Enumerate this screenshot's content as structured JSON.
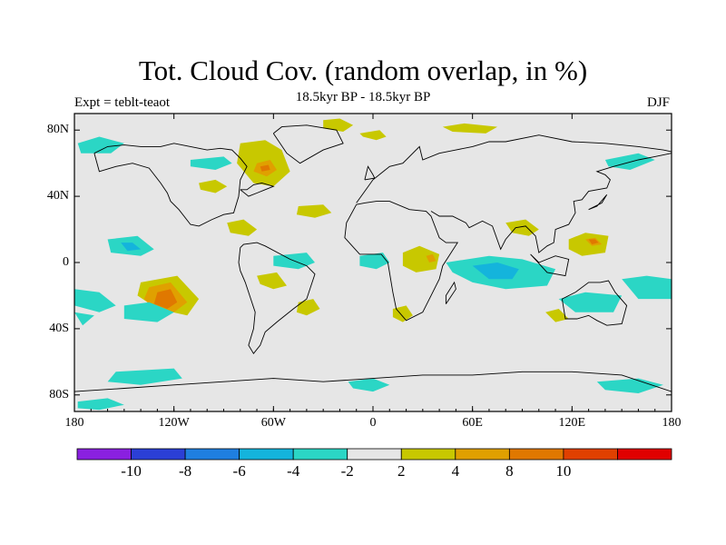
{
  "title": "Tot. Cloud Cov. (random overlap, in %)",
  "subtitle": "18.5kyr BP - 18.5kyr BP",
  "left_label": "Expt = teblt-teaot",
  "right_label": "DJF",
  "map": {
    "lon_range": [
      -180,
      180
    ],
    "lat_range": [
      -90,
      90
    ],
    "x_ticks": [
      {
        "value": -180,
        "label": "180"
      },
      {
        "value": -120,
        "label": "120W"
      },
      {
        "value": -60,
        "label": "60W"
      },
      {
        "value": 0,
        "label": "0"
      },
      {
        "value": 60,
        "label": "60E"
      },
      {
        "value": 120,
        "label": "120E"
      },
      {
        "value": 180,
        "label": "180"
      }
    ],
    "y_ticks": [
      {
        "value": 80,
        "label": "80N"
      },
      {
        "value": 40,
        "label": "40N"
      },
      {
        "value": 0,
        "label": "0"
      },
      {
        "value": -40,
        "label": "40S"
      },
      {
        "value": -80,
        "label": "80S"
      }
    ],
    "background_color": "#e6e6e6"
  },
  "colorbar": {
    "colors": [
      "#8a20e0",
      "#2b3fd6",
      "#1f7fe0",
      "#14b4dc",
      "#2bd6c5",
      "#e6e6e6",
      "#c8c800",
      "#e0a000",
      "#e07800",
      "#e04000",
      "#e00000"
    ],
    "labels": [
      "-10",
      "-8",
      "-6",
      "-4",
      "-2",
      "2",
      "4",
      "8",
      "10"
    ]
  },
  "anomalies": [
    {
      "kind": "pos",
      "level": 1,
      "lon": [
        -8,
        4,
        8,
        2,
        -6
      ],
      "lat": [
        78,
        80,
        76,
        74,
        76
      ]
    },
    {
      "kind": "pos",
      "level": 1,
      "lon": [
        42,
        55,
        75,
        68,
        48
      ],
      "lat": [
        82,
        84,
        82,
        78,
        79
      ]
    },
    {
      "kind": "pos",
      "level": 1,
      "lon": [
        -80,
        -65,
        -55,
        -50,
        -60,
        -72,
        -82
      ],
      "lat": [
        72,
        74,
        68,
        55,
        46,
        48,
        60
      ]
    },
    {
      "kind": "pos",
      "level": 2,
      "lon": [
        -70,
        -62,
        -58,
        -64,
        -72
      ],
      "lat": [
        60,
        62,
        56,
        52,
        55
      ]
    },
    {
      "kind": "pos",
      "level": 3,
      "lon": [
        -68,
        -63,
        -62,
        -67
      ],
      "lat": [
        58,
        59,
        56,
        55
      ]
    },
    {
      "kind": "pos",
      "level": 1,
      "lon": [
        -30,
        -20,
        -12,
        -18,
        -30
      ],
      "lat": [
        86,
        87,
        83,
        79,
        81
      ]
    },
    {
      "kind": "pos",
      "level": 1,
      "lon": [
        -88,
        -78,
        -70,
        -75,
        -86
      ],
      "lat": [
        24,
        26,
        20,
        16,
        18
      ]
    },
    {
      "kind": "pos",
      "level": 1,
      "lon": [
        -45,
        -30,
        -25,
        -35,
        -46
      ],
      "lat": [
        34,
        35,
        30,
        27,
        29
      ]
    },
    {
      "kind": "pos",
      "level": 1,
      "lon": [
        -140,
        -118,
        -105,
        -112,
        -130,
        -142
      ],
      "lat": [
        -12,
        -8,
        -22,
        -32,
        -28,
        -20
      ]
    },
    {
      "kind": "pos",
      "level": 2,
      "lon": [
        -135,
        -122,
        -112,
        -120,
        -132,
        -138
      ],
      "lat": [
        -15,
        -12,
        -24,
        -30,
        -28,
        -22
      ]
    },
    {
      "kind": "pos",
      "level": 3,
      "lon": [
        -130,
        -122,
        -118,
        -124,
        -132
      ],
      "lat": [
        -18,
        -16,
        -24,
        -28,
        -25
      ]
    },
    {
      "kind": "pos",
      "level": 1,
      "lon": [
        -70,
        -58,
        -52,
        -60,
        -68
      ],
      "lat": [
        -8,
        -6,
        -14,
        -16,
        -13
      ]
    },
    {
      "kind": "pos",
      "level": 1,
      "lon": [
        -45,
        -36,
        -32,
        -40,
        -46
      ],
      "lat": [
        -24,
        -22,
        -28,
        -32,
        -30
      ]
    },
    {
      "kind": "pos",
      "level": 1,
      "lon": [
        18,
        28,
        40,
        38,
        26,
        18
      ],
      "lat": [
        6,
        10,
        5,
        -4,
        -6,
        -2
      ]
    },
    {
      "kind": "pos",
      "level": 2,
      "lon": [
        32,
        36,
        38,
        34
      ],
      "lat": [
        4,
        5,
        1,
        0
      ]
    },
    {
      "kind": "pos",
      "level": 1,
      "lon": [
        12,
        20,
        24,
        18,
        12
      ],
      "lat": [
        -28,
        -26,
        -32,
        -36,
        -33
      ]
    },
    {
      "kind": "pos",
      "level": 1,
      "lon": [
        80,
        92,
        100,
        94,
        84
      ],
      "lat": [
        24,
        26,
        20,
        16,
        18
      ]
    },
    {
      "kind": "pos",
      "level": 1,
      "lon": [
        118,
        128,
        142,
        140,
        126,
        118
      ],
      "lat": [
        14,
        18,
        16,
        6,
        4,
        8
      ]
    },
    {
      "kind": "pos",
      "level": 2,
      "lon": [
        128,
        134,
        138,
        132
      ],
      "lat": [
        14,
        15,
        11,
        10
      ]
    },
    {
      "kind": "pos",
      "level": 3,
      "lon": [
        130,
        134,
        136,
        132
      ],
      "lat": [
        14,
        14,
        12,
        11
      ]
    },
    {
      "kind": "pos",
      "level": 1,
      "lon": [
        104,
        112,
        118,
        110
      ],
      "lat": [
        -30,
        -28,
        -34,
        -36
      ]
    },
    {
      "kind": "pos",
      "level": 1,
      "lon": [
        -105,
        -95,
        -88,
        -95,
        -104
      ],
      "lat": [
        48,
        50,
        46,
        42,
        44
      ]
    },
    {
      "kind": "neg",
      "level": 1,
      "lon": [
        -160,
        -142,
        -132,
        -140,
        -158
      ],
      "lat": [
        14,
        16,
        8,
        4,
        6
      ]
    },
    {
      "kind": "neg",
      "level": 2,
      "lon": [
        -152,
        -145,
        -140,
        -148
      ],
      "lat": [
        12,
        12,
        8,
        7
      ]
    },
    {
      "kind": "neg",
      "level": 1,
      "lon": [
        -180,
        -165,
        -155,
        -165,
        -180
      ],
      "lat": [
        -16,
        -18,
        -26,
        -30,
        -26
      ]
    },
    {
      "kind": "neg",
      "level": 1,
      "lon": [
        -150,
        -135,
        -120,
        -130,
        -150
      ],
      "lat": [
        -26,
        -24,
        -30,
        -36,
        -34
      ]
    },
    {
      "kind": "neg",
      "level": 1,
      "lon": [
        -178,
        -165,
        -150,
        -158,
        -176
      ],
      "lat": [
        72,
        76,
        72,
        66,
        66
      ]
    },
    {
      "kind": "neg",
      "level": 1,
      "lon": [
        -155,
        -120,
        -115,
        -140,
        -160
      ],
      "lat": [
        -66,
        -64,
        -70,
        -74,
        -72
      ]
    },
    {
      "kind": "neg",
      "level": 1,
      "lon": [
        -60,
        -40,
        -35,
        -45,
        -60
      ],
      "lat": [
        4,
        6,
        0,
        -4,
        -2
      ]
    },
    {
      "kind": "neg",
      "level": 1,
      "lon": [
        -8,
        6,
        10,
        2,
        -8
      ],
      "lat": [
        4,
        6,
        0,
        -4,
        -2
      ]
    },
    {
      "kind": "neg",
      "level": 1,
      "lon": [
        44,
        70,
        90,
        110,
        105,
        80,
        60,
        48
      ],
      "lat": [
        0,
        4,
        2,
        -4,
        -14,
        -16,
        -12,
        -6
      ]
    },
    {
      "kind": "neg",
      "level": 2,
      "lon": [
        60,
        75,
        88,
        84,
        70
      ],
      "lat": [
        -2,
        0,
        -4,
        -10,
        -10
      ]
    },
    {
      "kind": "neg",
      "level": 1,
      "lon": [
        112,
        128,
        150,
        145,
        122
      ],
      "lat": [
        -22,
        -18,
        -20,
        -30,
        -30
      ]
    },
    {
      "kind": "neg",
      "level": 1,
      "lon": [
        150,
        165,
        180,
        180,
        160
      ],
      "lat": [
        -10,
        -8,
        -10,
        -22,
        -22
      ]
    },
    {
      "kind": "neg",
      "level": 1,
      "lon": [
        -180,
        -168,
        -175
      ],
      "lat": [
        -30,
        -32,
        -38
      ]
    },
    {
      "kind": "neg",
      "level": 1,
      "lon": [
        -15,
        0,
        10,
        0,
        -12
      ],
      "lat": [
        -72,
        -70,
        -74,
        -78,
        -76
      ]
    },
    {
      "kind": "neg",
      "level": 1,
      "lon": [
        135,
        160,
        175,
        160,
        140
      ],
      "lat": [
        -72,
        -70,
        -74,
        -79,
        -77
      ]
    },
    {
      "kind": "neg",
      "level": 1,
      "lon": [
        -110,
        -90,
        -85,
        -95,
        -110
      ],
      "lat": [
        62,
        64,
        60,
        56,
        58
      ]
    },
    {
      "kind": "neg",
      "level": 1,
      "lon": [
        140,
        160,
        170,
        155,
        142
      ],
      "lat": [
        62,
        66,
        62,
        56,
        58
      ]
    },
    {
      "kind": "neg",
      "level": 1,
      "lon": [
        -178,
        -160,
        -150,
        -165,
        -178
      ],
      "lat": [
        -84,
        -82,
        -86,
        -89,
        -88
      ]
    }
  ],
  "coastlines": [
    {
      "lon": [
        -168,
        -160,
        -150,
        -140,
        -128,
        -120,
        -110,
        -100,
        -92,
        -85,
        -80,
        -76,
        -80,
        -81,
        -84,
        -90,
        -97,
        -105,
        -110,
        -117,
        -122,
        -124,
        -128,
        -135,
        -145,
        -155,
        -165,
        -168
      ],
      "lat": [
        66,
        70,
        71,
        70,
        70,
        72,
        70,
        68,
        69,
        68,
        63,
        58,
        50,
        40,
        30,
        29,
        26,
        22,
        23,
        32,
        37,
        42,
        48,
        57,
        60,
        58,
        55,
        66
      ]
    },
    {
      "lon": [
        -80,
        -75,
        -70,
        -65,
        -60,
        -67,
        -72,
        -76,
        -80
      ],
      "lat": [
        44,
        40,
        42,
        44,
        46,
        48,
        47,
        44,
        44
      ]
    },
    {
      "lon": [
        -60,
        -55,
        -40,
        -22,
        -18,
        -30,
        -44,
        -52,
        -60
      ],
      "lat": [
        78,
        82,
        83,
        80,
        72,
        68,
        60,
        66,
        78
      ]
    },
    {
      "lon": [
        -80,
        -78,
        -70,
        -65,
        -50,
        -40,
        -35,
        -40,
        -48,
        -58,
        -65,
        -68,
        -72,
        -75,
        -72,
        -71,
        -77,
        -80,
        -81,
        -80
      ],
      "lat": [
        9,
        11,
        12,
        10,
        2,
        -2,
        -7,
        -22,
        -28,
        -36,
        -42,
        -50,
        -55,
        -50,
        -40,
        -30,
        -12,
        -5,
        0,
        9
      ]
    },
    {
      "lon": [
        -10,
        -5,
        2,
        10,
        22,
        32,
        35,
        40,
        44,
        51,
        42,
        40,
        35,
        30,
        20,
        14,
        12,
        9,
        5,
        -8,
        -17,
        -16,
        -10
      ],
      "lat": [
        35,
        36,
        37,
        37,
        32,
        31,
        28,
        15,
        12,
        12,
        -2,
        -10,
        -20,
        -30,
        -35,
        -28,
        -18,
        0,
        5,
        5,
        15,
        24,
        35
      ]
    },
    {
      "lon": [
        -10,
        -5,
        0,
        5,
        10,
        18,
        28,
        30,
        40,
        50,
        60,
        70,
        80,
        100,
        120,
        140,
        160,
        175,
        180
      ],
      "lat": [
        36,
        43,
        50,
        54,
        58,
        60,
        70,
        62,
        66,
        68,
        70,
        73,
        73,
        77,
        73,
        72,
        70,
        68,
        67
      ]
    },
    {
      "lon": [
        35,
        40,
        48,
        56,
        58,
        66,
        72,
        77,
        80,
        86,
        92,
        98,
        100,
        105,
        109,
        110,
        118,
        122,
        121,
        126,
        130,
        141,
        143,
        140,
        135,
        145,
        160,
        170,
        180
      ],
      "lat": [
        31,
        28,
        28,
        24,
        21,
        25,
        22,
        8,
        14,
        21,
        22,
        16,
        6,
        10,
        12,
        20,
        23,
        30,
        37,
        38,
        43,
        45,
        50,
        53,
        55,
        58,
        62,
        64,
        66
      ]
    },
    {
      "lon": [
        114,
        122,
        130,
        137,
        142,
        146,
        153,
        150,
        141,
        135,
        130,
        123,
        116,
        114
      ],
      "lat": [
        -22,
        -18,
        -12,
        -12,
        -11,
        -18,
        -26,
        -37,
        -38,
        -35,
        -32,
        -34,
        -34,
        -22
      ]
    },
    {
      "lon": [
        44,
        50,
        49,
        44,
        44
      ],
      "lat": [
        -25,
        -16,
        -12,
        -20,
        -25
      ]
    },
    {
      "lon": [
        -5,
        1,
        0,
        -3,
        -5
      ],
      "lat": [
        50,
        51,
        53,
        58,
        50
      ]
    },
    {
      "lon": [
        -180,
        -150,
        -120,
        -90,
        -60,
        -30,
        0,
        30,
        60,
        90,
        120,
        150,
        180
      ],
      "lat": [
        -78,
        -76,
        -74,
        -72,
        -70,
        -72,
        -70,
        -68,
        -68,
        -66,
        -66,
        -68,
        -78
      ]
    },
    {
      "lon": [
        130,
        135,
        141,
        138,
        130
      ],
      "lat": [
        32,
        34,
        41,
        36,
        32
      ]
    },
    {
      "lon": [
        95,
        105,
        116,
        118,
        110,
        100,
        95
      ],
      "lat": [
        5,
        -6,
        -8,
        2,
        4,
        0,
        5
      ]
    }
  ]
}
